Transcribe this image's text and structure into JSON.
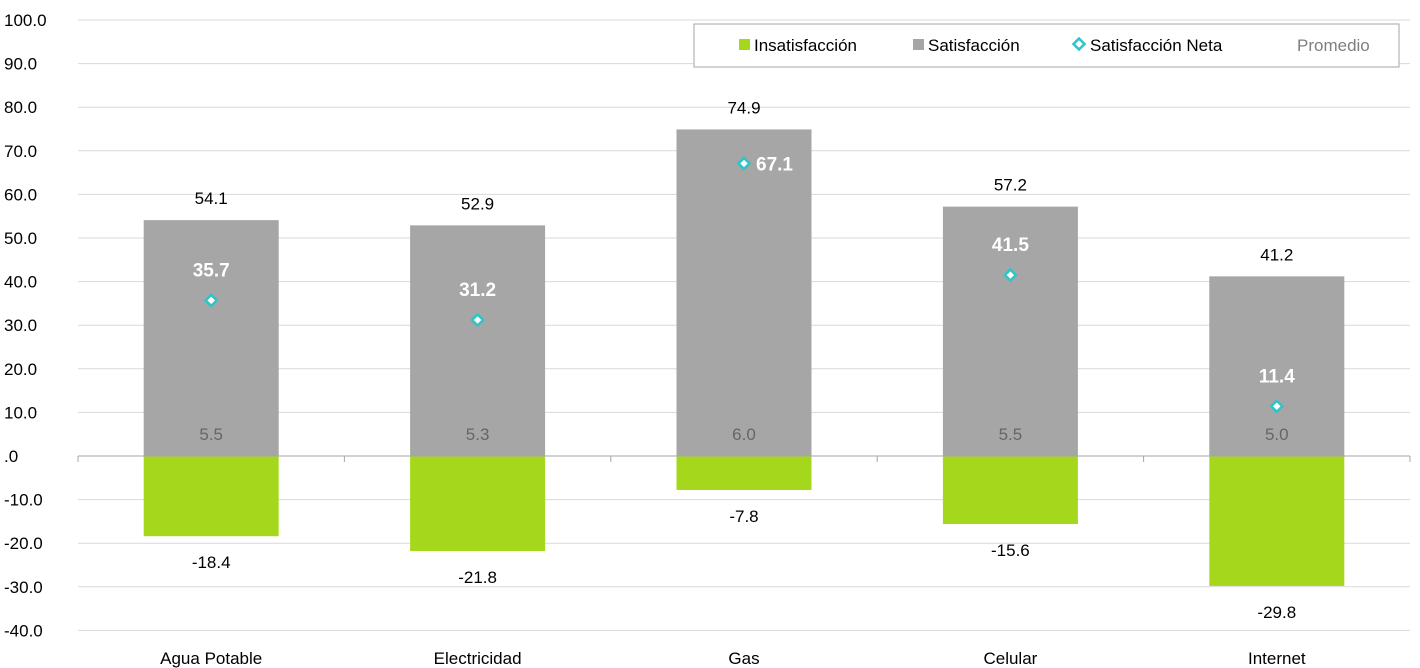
{
  "chart_data": {
    "type": "bar",
    "categories": [
      "Agua Potable",
      "Electricidad",
      "Gas",
      "Celular",
      "Internet"
    ],
    "series": [
      {
        "name": "Insatisfacción",
        "values": [
          -18.4,
          -21.8,
          -7.8,
          -15.6,
          -29.8
        ]
      },
      {
        "name": "Satisfacción",
        "values": [
          54.1,
          52.9,
          74.9,
          57.2,
          41.2
        ]
      },
      {
        "name": "Satisfacción Neta",
        "values": [
          35.7,
          31.2,
          67.1,
          41.5,
          11.4
        ]
      },
      {
        "name": "Promedio",
        "values": [
          5.5,
          5.3,
          6.0,
          5.5,
          5.0
        ]
      }
    ],
    "value_labels": {
      "insatisfaccion": [
        "-18.4",
        "-21.8",
        "-7.8",
        "-15.6",
        "-29.8"
      ],
      "satisfaccion": [
        "54.1",
        "52.9",
        "74.9",
        "57.2",
        "41.2"
      ],
      "neta": [
        "35.7",
        "31.2",
        "67.1",
        "41.5",
        "11.4"
      ],
      "promedio": [
        "5.5",
        "5.3",
        "6.0",
        "5.5",
        "5.0"
      ]
    },
    "ylim": [
      -40,
      100
    ],
    "yticks": [
      100,
      90,
      80,
      70,
      60,
      50,
      40,
      30,
      20,
      10,
      0,
      -10,
      -20,
      -30,
      -40
    ],
    "ytick_labels": [
      "100.0",
      "90.0",
      "80.0",
      "70.0",
      "60.0",
      "50.0",
      "40.0",
      "30.0",
      "20.0",
      "10.0",
      ".0",
      "-10.0",
      "-20.0",
      "-30.0",
      "-40.0"
    ],
    "grid": true,
    "legend_position": "top-right",
    "legend": {
      "insatisfaccion": "Insatisfacción",
      "satisfaccion": "Satisfacción",
      "neta": "Satisfacción Neta",
      "promedio": "Promedio"
    },
    "colors": {
      "insatisfaccion": "#a5d81c",
      "satisfaccion": "#a6a6a6",
      "neta": "#2ec4c8",
      "promedio_text": "#666666",
      "grid": "#d9d9d9",
      "axis": "#a6a6a6"
    }
  }
}
